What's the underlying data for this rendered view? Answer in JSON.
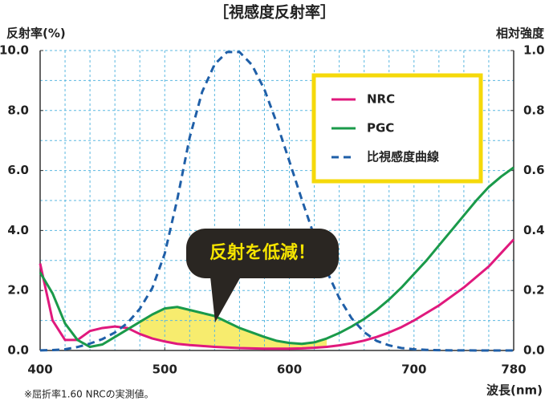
{
  "chart_data": {
    "type": "line",
    "title": "［視感度反射率］",
    "ylabel": "反射率(%)",
    "y2label": "相対強度",
    "xlabel": "波長(nm)",
    "footnote": "※屈折率1.60 NRCの実測値。",
    "annotation": "反射を低減！",
    "x": [
      400,
      410,
      420,
      430,
      440,
      450,
      460,
      470,
      480,
      490,
      500,
      510,
      520,
      530,
      540,
      550,
      560,
      570,
      580,
      590,
      600,
      610,
      620,
      630,
      640,
      650,
      660,
      670,
      680,
      690,
      700,
      710,
      720,
      730,
      740,
      750,
      760,
      770,
      780
    ],
    "series": [
      {
        "name": "NRC",
        "color": "#e0197d",
        "values": [
          2.9,
          1.0,
          0.35,
          0.35,
          0.65,
          0.75,
          0.8,
          0.75,
          0.55,
          0.4,
          0.3,
          0.22,
          0.18,
          0.15,
          0.12,
          0.1,
          0.08,
          0.07,
          0.06,
          0.06,
          0.06,
          0.07,
          0.09,
          0.12,
          0.17,
          0.24,
          0.33,
          0.45,
          0.6,
          0.78,
          1.0,
          1.25,
          1.5,
          1.8,
          2.1,
          2.45,
          2.8,
          3.25,
          3.7
        ]
      },
      {
        "name": "PGC",
        "color": "#1a9a4a",
        "values": [
          2.6,
          1.9,
          0.9,
          0.35,
          0.12,
          0.2,
          0.45,
          0.7,
          0.95,
          1.2,
          1.4,
          1.45,
          1.35,
          1.25,
          1.15,
          0.95,
          0.75,
          0.6,
          0.45,
          0.32,
          0.25,
          0.22,
          0.27,
          0.4,
          0.58,
          0.8,
          1.05,
          1.35,
          1.7,
          2.1,
          2.55,
          3.0,
          3.5,
          4.0,
          4.5,
          5.0,
          5.45,
          5.8,
          6.1
        ]
      },
      {
        "name": "比視感度曲線",
        "color": "#1f5fa8",
        "axis": "y2",
        "linestyle": "dashed",
        "values": [
          0.0004,
          0.0012,
          0.004,
          0.0116,
          0.023,
          0.038,
          0.06,
          0.091,
          0.139,
          0.208,
          0.323,
          0.503,
          0.71,
          0.862,
          0.954,
          0.995,
          0.995,
          0.952,
          0.87,
          0.757,
          0.631,
          0.503,
          0.381,
          0.265,
          0.175,
          0.107,
          0.061,
          0.032,
          0.017,
          0.0082,
          0.0041,
          0.0021,
          0.001,
          0.0005,
          0.00025,
          0.0001,
          6e-05,
          3e-05,
          1e-05
        ]
      }
    ],
    "highlight_color": "#f7ec6e",
    "xlim": [
      400,
      780
    ],
    "xticks": [
      400,
      500,
      600,
      700,
      780
    ],
    "ylim": [
      0,
      10
    ],
    "yticks": [
      {
        "value": 0,
        "label": "0.0"
      },
      {
        "value": 2,
        "label": "2.0"
      },
      {
        "value": 4,
        "label": "4.0"
      },
      {
        "value": 6,
        "label": "6.0"
      },
      {
        "value": 8,
        "label": "8.0"
      },
      {
        "value": 10,
        "label": "10.0"
      }
    ],
    "y2lim": [
      0,
      1
    ],
    "y2ticks": [
      {
        "value": 0,
        "label": "0.0"
      },
      {
        "value": 0.2,
        "label": "0.2"
      },
      {
        "value": 0.4,
        "label": "0.4"
      },
      {
        "value": 0.6,
        "label": "0.6"
      },
      {
        "value": 0.8,
        "label": "0.8"
      },
      {
        "value": 1,
        "label": "1.0"
      }
    ],
    "grid": true,
    "xgrid": [
      420,
      440,
      460,
      480,
      500,
      520,
      540,
      560,
      580,
      600,
      620,
      640,
      660,
      680,
      700,
      720,
      740,
      760
    ],
    "ygrid": [
      1,
      2,
      3,
      4,
      5,
      6,
      7,
      8,
      9,
      10
    ],
    "legend": "upper right"
  }
}
